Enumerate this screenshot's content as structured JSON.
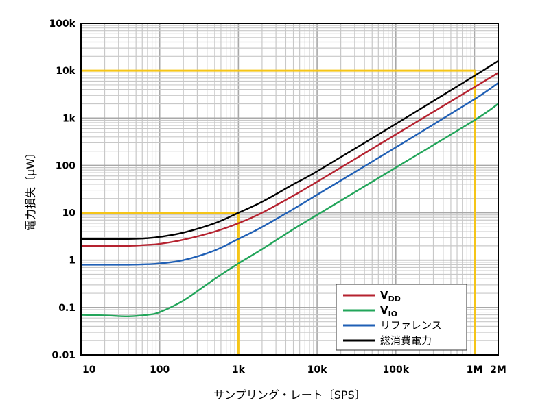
{
  "chart_data": {
    "type": "line",
    "xlabel": "サンプリング・レート〔SPS〕",
    "ylabel": "電力損失〔μW〕",
    "x_scale": "log",
    "y_scale": "log",
    "xlim": [
      10,
      2000000
    ],
    "ylim": [
      0.01,
      100000
    ],
    "grid": true,
    "legend_position": "bottom-right",
    "x_ticks": [
      {
        "value": 10,
        "label": "10"
      },
      {
        "value": 100,
        "label": "100"
      },
      {
        "value": 1000,
        "label": "1k"
      },
      {
        "value": 10000,
        "label": "10k"
      },
      {
        "value": 100000,
        "label": "100k"
      },
      {
        "value": 1000000,
        "label": "1M"
      },
      {
        "value": 2000000,
        "label": "2M"
      }
    ],
    "y_ticks": [
      {
        "value": 0.01,
        "label": "0.01"
      },
      {
        "value": 0.1,
        "label": "0.1"
      },
      {
        "value": 1,
        "label": "1"
      },
      {
        "value": 10,
        "label": "10"
      },
      {
        "value": 100,
        "label": "100"
      },
      {
        "value": 1000,
        "label": "1k"
      },
      {
        "value": 10000,
        "label": "10k"
      },
      {
        "value": 100000,
        "label": "100k"
      }
    ],
    "series": [
      {
        "name": "VDD",
        "name_main": "V",
        "name_sub": "DD",
        "color": "#b5222f",
        "x": [
          10,
          20,
          40,
          70,
          100,
          200,
          500,
          1000,
          2000,
          5000,
          10000,
          100000,
          1000000,
          2000000
        ],
        "y": [
          2.0,
          2.0,
          2.0,
          2.1,
          2.2,
          2.7,
          4.0,
          6.0,
          10.0,
          23,
          45,
          450,
          4500,
          9000
        ]
      },
      {
        "name": "VIO",
        "name_main": "V",
        "name_sub": "IO",
        "color": "#22a55a",
        "x": [
          10,
          20,
          40,
          70,
          100,
          200,
          500,
          1000,
          2000,
          5000,
          10000,
          100000,
          1000000,
          2000000
        ],
        "y": [
          0.07,
          0.068,
          0.065,
          0.07,
          0.08,
          0.14,
          0.4,
          0.85,
          1.7,
          4.5,
          9.0,
          90,
          900,
          2000
        ]
      },
      {
        "name": "リファレンス",
        "color": "#1f5fb5",
        "x": [
          10,
          20,
          40,
          70,
          100,
          200,
          500,
          1000,
          2000,
          5000,
          10000,
          100000,
          1000000,
          2000000
        ],
        "y": [
          0.8,
          0.8,
          0.8,
          0.82,
          0.85,
          1.0,
          1.6,
          2.8,
          5.0,
          12,
          24,
          240,
          2500,
          5500
        ]
      },
      {
        "name": "総消費電力",
        "color": "#000000",
        "x": [
          10,
          20,
          40,
          70,
          100,
          200,
          500,
          1000,
          2000,
          5000,
          10000,
          100000,
          1000000,
          2000000
        ],
        "y": [
          2.8,
          2.8,
          2.8,
          2.9,
          3.1,
          3.8,
          6.0,
          10.0,
          17,
          40,
          75,
          750,
          7800,
          16000
        ]
      }
    ],
    "reference_lines": [
      {
        "color": "#f5c518",
        "points": [
          [
            10,
            10
          ],
          [
            1000,
            10
          ],
          [
            1000,
            0.01
          ]
        ]
      },
      {
        "color": "#f5c518",
        "points": [
          [
            10,
            10000
          ],
          [
            1000000,
            10000
          ],
          [
            1000000,
            0.01
          ]
        ]
      }
    ]
  }
}
